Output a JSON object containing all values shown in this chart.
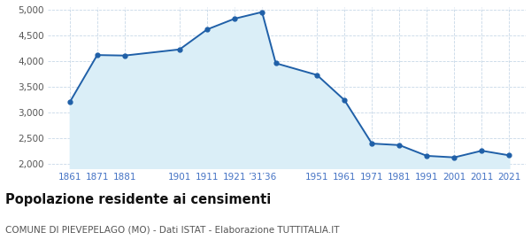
{
  "years": [
    1861,
    1871,
    1881,
    1901,
    1911,
    1921,
    1931,
    1936,
    1951,
    1961,
    1971,
    1981,
    1991,
    2001,
    2011,
    2021
  ],
  "population": [
    3200,
    4120,
    4110,
    4230,
    4620,
    4830,
    4960,
    3960,
    3730,
    3240,
    2390,
    2360,
    2150,
    2120,
    2250,
    2160
  ],
  "line_color": "#2060a8",
  "fill_color": "#daeef7",
  "marker_color": "#2060a8",
  "bg_color": "#ffffff",
  "grid_color": "#c8d8e8",
  "ylim": [
    1900,
    5050
  ],
  "yticks": [
    2000,
    2500,
    3000,
    3500,
    4000,
    4500,
    5000
  ],
  "title": "Popolazione residente ai censimenti",
  "subtitle": "COMUNE DI PIEVEPELAGO (MO) - Dati ISTAT - Elaborazione TUTTITALIA.IT",
  "title_fontsize": 10.5,
  "subtitle_fontsize": 7.5,
  "tick_color": "#4472c4",
  "ytick_color": "#555555"
}
